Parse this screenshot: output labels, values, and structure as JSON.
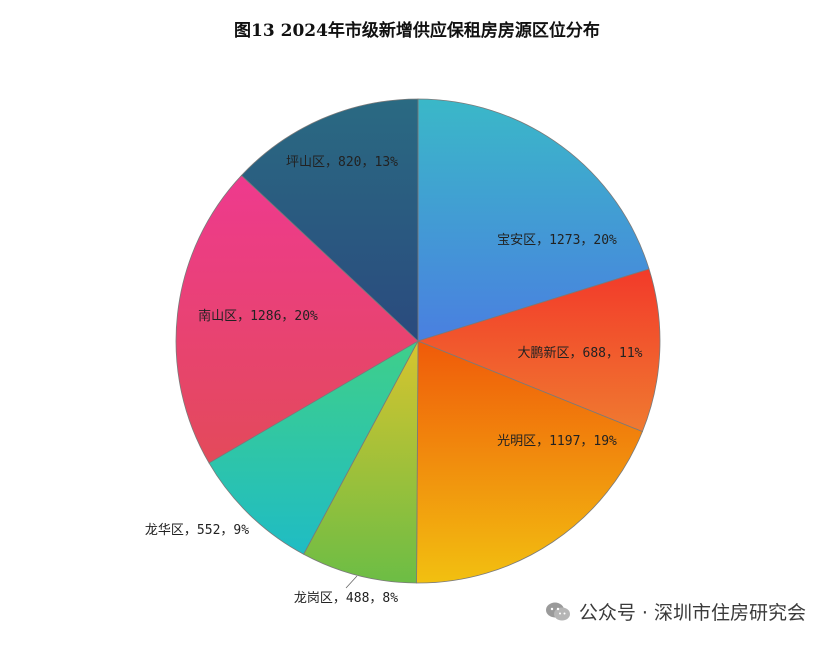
{
  "chart_data": {
    "type": "pie",
    "title": "图13 2024年市级新增供应保租房房源区位分布",
    "slices": [
      {
        "name": "宝安区",
        "value": 1273,
        "percent": "20%",
        "label": "宝安区，1273，20%",
        "color_from": "#3ab8c8",
        "color_to": "#4a7fe0"
      },
      {
        "name": "大鹏新区",
        "value": 688,
        "percent": "11%",
        "label": "大鹏新区，688，11%",
        "color_from": "#f23a2a",
        "color_to": "#f07a30"
      },
      {
        "name": "光明区",
        "value": 1197,
        "percent": "19%",
        "label": "光明区，1197，19%",
        "color_from": "#f05a0a",
        "color_to": "#f2c010"
      },
      {
        "name": "龙岗区",
        "value": 488,
        "percent": "8%",
        "label": "龙岗区，488，8%",
        "color_from": "#d7c42e",
        "color_to": "#6cbd45"
      },
      {
        "name": "龙华区",
        "value": 552,
        "percent": "9%",
        "label": "龙华区，552，9%",
        "color_from": "#3fcf8a",
        "color_to": "#1fbcc4"
      },
      {
        "name": "南山区",
        "value": 1286,
        "percent": "20%",
        "label": "南山区，1286，20%",
        "color_from": "#ee3a8e",
        "color_to": "#e34a5a"
      },
      {
        "name": "坪山区",
        "value": 820,
        "percent": "13%",
        "label": "坪山区，820，13%",
        "color_from": "#2a6a82",
        "color_to": "#2a4a7e"
      }
    ]
  },
  "watermark": {
    "text": "公众号 · 深圳市住房研究会",
    "icon": "wechat-icon"
  }
}
